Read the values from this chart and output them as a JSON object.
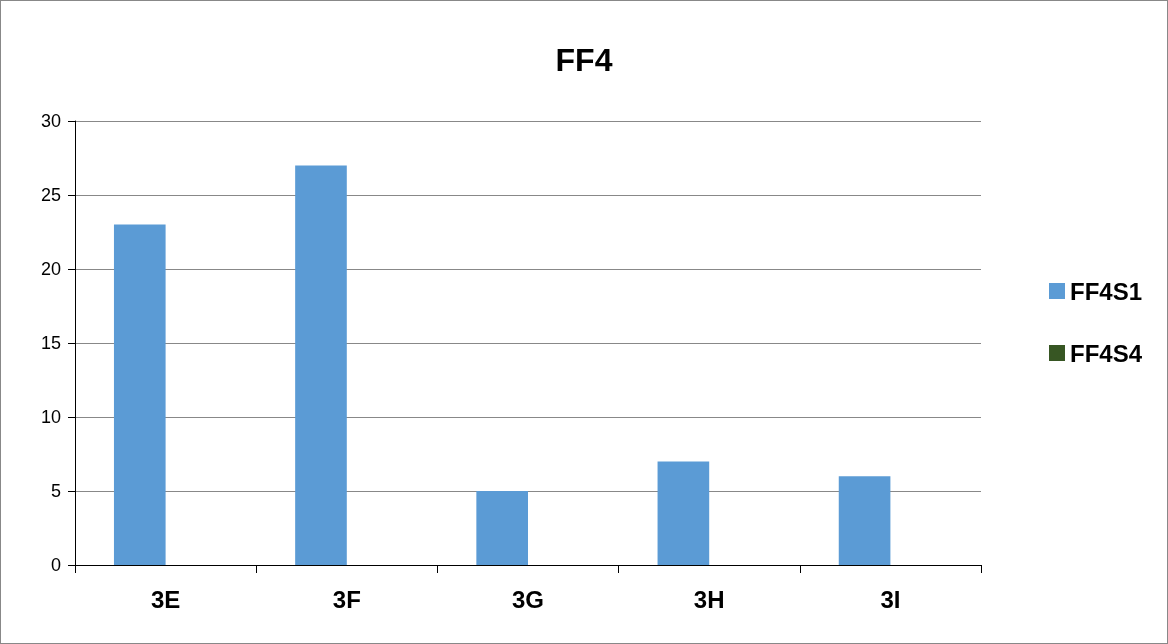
{
  "chart_data": {
    "type": "bar",
    "title": "FF4",
    "categories": [
      "3E",
      "3F",
      "3G",
      "3H",
      "3I"
    ],
    "series": [
      {
        "name": "FF4S1",
        "color": "#5b9bd5",
        "values": [
          23,
          27,
          5,
          7,
          6
        ]
      },
      {
        "name": "FF4S4",
        "color": "#375623",
        "values": [
          null,
          null,
          null,
          null,
          null
        ]
      }
    ],
    "ylim": [
      0,
      30
    ],
    "yticks": [
      0,
      5,
      10,
      15,
      20,
      25,
      30
    ],
    "grid": "y",
    "legend": "right"
  }
}
